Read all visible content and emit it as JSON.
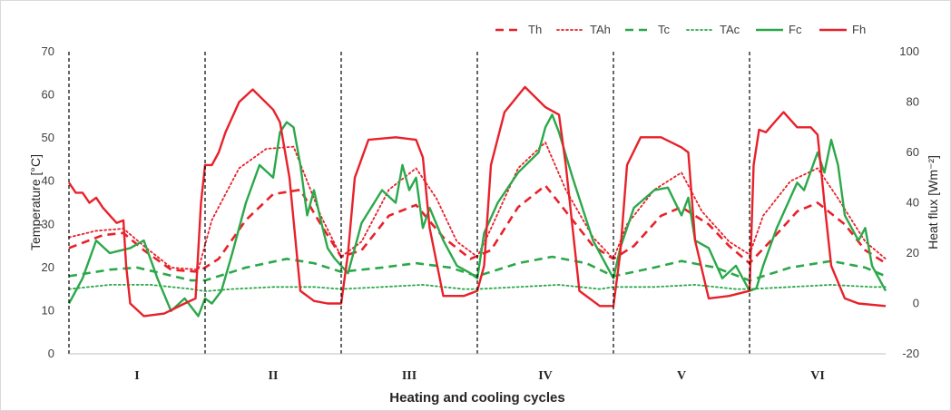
{
  "chart_data": {
    "type": "line",
    "title": "",
    "xlabel": "Heating and cooling  cycles",
    "ylabel": "Temperature [°C]",
    "y2label": "Heat flux [Wm⁻²]",
    "ylim": [
      0,
      70
    ],
    "y2lim": [
      -20,
      100
    ],
    "yticks": [
      "0",
      "10",
      "20",
      "30",
      "40",
      "50",
      "60",
      "70"
    ],
    "y2ticks": [
      "-20",
      "0",
      "20",
      "40",
      "60",
      "80",
      "100"
    ],
    "xlim": [
      0,
      6
    ],
    "cycles": [
      "I",
      "II",
      "III",
      "IV",
      "V",
      "VI"
    ],
    "cycle_boundaries": [
      0,
      1,
      2,
      3,
      4,
      5,
      6
    ],
    "legend_position": "top-right",
    "grid": false,
    "series": [
      {
        "name": "Th",
        "axis": "left",
        "color": "#e8212a",
        "style": "dashed",
        "x": [
          0,
          0.25,
          0.4,
          0.55,
          0.75,
          0.95,
          1.1,
          1.3,
          1.5,
          1.7,
          1.85,
          2.0,
          2.15,
          2.35,
          2.55,
          2.75,
          2.95,
          3.1,
          3.3,
          3.5,
          3.7,
          3.85,
          4.0,
          4.15,
          4.35,
          4.5,
          4.7,
          4.85,
          5.0,
          5.15,
          5.35,
          5.5,
          5.7,
          5.85,
          6.0
        ],
        "y": [
          24.5,
          27.5,
          28,
          24,
          19.5,
          19,
          22,
          31,
          37,
          38,
          30,
          22.5,
          24,
          32,
          34.5,
          27,
          22,
          24,
          34,
          39,
          31,
          25,
          22,
          25,
          32,
          34,
          30,
          25,
          21,
          26,
          33,
          35,
          30,
          24,
          21
        ]
      },
      {
        "name": "TAh",
        "axis": "left",
        "color": "#e8212a",
        "style": "dotted",
        "x": [
          0,
          0.2,
          0.4,
          0.55,
          0.75,
          0.95,
          1.05,
          1.25,
          1.45,
          1.65,
          1.85,
          2.0,
          2.15,
          2.35,
          2.55,
          2.7,
          2.85,
          3.0,
          3.1,
          3.3,
          3.5,
          3.65,
          3.85,
          4.0,
          4.1,
          4.3,
          4.5,
          4.65,
          4.85,
          5.0,
          5.1,
          5.3,
          5.5,
          5.65,
          5.85,
          6.0
        ],
        "y": [
          27,
          28.5,
          29,
          25,
          20,
          19.5,
          31,
          43,
          47.5,
          48,
          32,
          22.5,
          26,
          38,
          43,
          36,
          26,
          22.5,
          29,
          43,
          49,
          38,
          27,
          22,
          30,
          38,
          42,
          33,
          26,
          23,
          32,
          40,
          43,
          36,
          26,
          22
        ]
      },
      {
        "name": "Tc",
        "axis": "left",
        "color": "#2ba84a",
        "style": "dashed",
        "x": [
          0,
          0.3,
          0.5,
          0.7,
          0.9,
          1.0,
          1.3,
          1.6,
          1.8,
          2.0,
          2.3,
          2.55,
          2.8,
          3.0,
          3.3,
          3.55,
          3.8,
          4.0,
          4.3,
          4.5,
          4.75,
          5.0,
          5.3,
          5.6,
          5.85,
          6.0
        ],
        "y": [
          18,
          19.5,
          20,
          18.5,
          17,
          17,
          20,
          22,
          21,
          19,
          20,
          21,
          20,
          18,
          21,
          22.5,
          21,
          18,
          20,
          21.5,
          20,
          17,
          20,
          21.5,
          20,
          18
        ]
      },
      {
        "name": "TAc",
        "axis": "left",
        "color": "#2ba84a",
        "style": "dotted",
        "x": [
          0,
          0.3,
          0.6,
          0.9,
          1.0,
          1.2,
          1.5,
          1.8,
          2.0,
          2.3,
          2.6,
          2.9,
          3.0,
          3.3,
          3.6,
          3.9,
          4.0,
          4.3,
          4.6,
          4.9,
          5.0,
          5.3,
          5.6,
          5.9,
          6.0
        ],
        "y": [
          15,
          16,
          16,
          15,
          14.5,
          15,
          15.5,
          15.5,
          15,
          15.5,
          16,
          15,
          15,
          15.5,
          16,
          15,
          15.5,
          15.5,
          16,
          15,
          15,
          15.5,
          16,
          15.5,
          15.5
        ]
      },
      {
        "name": "Fc",
        "axis": "right",
        "color": "#2ba84a",
        "style": "solid",
        "x": [
          0,
          0.1,
          0.2,
          0.3,
          0.45,
          0.55,
          0.65,
          0.75,
          0.85,
          0.95,
          1.0,
          1.05,
          1.12,
          1.2,
          1.3,
          1.4,
          1.5,
          1.55,
          1.6,
          1.65,
          1.7,
          1.75,
          1.8,
          1.85,
          1.9,
          1.95,
          2.0,
          2.05,
          2.15,
          2.3,
          2.4,
          2.45,
          2.5,
          2.55,
          2.6,
          2.65,
          2.75,
          2.85,
          2.95,
          3.0,
          3.05,
          3.15,
          3.3,
          3.45,
          3.5,
          3.55,
          3.6,
          3.7,
          3.85,
          3.95,
          4.0,
          4.05,
          4.15,
          4.3,
          4.4,
          4.5,
          4.55,
          4.6,
          4.7,
          4.8,
          4.9,
          5.0,
          5.05,
          5.1,
          5.2,
          5.3,
          5.35,
          5.4,
          5.5,
          5.55,
          5.6,
          5.65,
          5.7,
          5.8,
          5.85,
          5.9,
          6.0
        ],
        "y": [
          0,
          10,
          25,
          20,
          22,
          25,
          10,
          -3,
          2,
          -5,
          2,
          0,
          5,
          20,
          40,
          55,
          50,
          68,
          72,
          70,
          55,
          35,
          45,
          33,
          22,
          18,
          15,
          12,
          32,
          45,
          40,
          55,
          45,
          50,
          30,
          38,
          25,
          15,
          12,
          10,
          28,
          40,
          52,
          60,
          70,
          75,
          68,
          50,
          25,
          15,
          10,
          22,
          38,
          45,
          46,
          35,
          42,
          25,
          22,
          10,
          15,
          5,
          6,
          15,
          30,
          42,
          48,
          45,
          60,
          52,
          65,
          55,
          35,
          25,
          30,
          15,
          5
        ]
      },
      {
        "name": "Fh",
        "axis": "right",
        "color": "#e8212a",
        "style": "solid",
        "x": [
          0,
          0.05,
          0.1,
          0.15,
          0.2,
          0.25,
          0.3,
          0.35,
          0.4,
          0.42,
          0.45,
          0.55,
          0.7,
          0.85,
          0.93,
          0.97,
          1.0,
          1.05,
          1.1,
          1.15,
          1.25,
          1.35,
          1.5,
          1.55,
          1.62,
          1.7,
          1.8,
          1.9,
          2.0,
          2.05,
          2.1,
          2.2,
          2.4,
          2.55,
          2.6,
          2.65,
          2.75,
          2.9,
          3.0,
          3.05,
          3.1,
          3.2,
          3.35,
          3.5,
          3.6,
          3.65,
          3.75,
          3.9,
          4.0,
          4.05,
          4.1,
          4.2,
          4.35,
          4.5,
          4.55,
          4.6,
          4.7,
          4.85,
          5.0,
          5.03,
          5.07,
          5.12,
          5.2,
          5.25,
          5.35,
          5.45,
          5.5,
          5.55,
          5.6,
          5.7,
          5.8,
          6.0
        ],
        "y": [
          48,
          44,
          44,
          40,
          42,
          38,
          35,
          32,
          33,
          15,
          0,
          -5,
          -4,
          0,
          2,
          40,
          55,
          55,
          60,
          68,
          80,
          85,
          77,
          72,
          50,
          5,
          1,
          0,
          0,
          20,
          50,
          65,
          66,
          65,
          58,
          30,
          3,
          3,
          5,
          15,
          55,
          76,
          86,
          78,
          75,
          55,
          5,
          -1,
          -1,
          20,
          55,
          66,
          66,
          62,
          60,
          25,
          2,
          3,
          5,
          55,
          69,
          68,
          73,
          76,
          70,
          70,
          67,
          40,
          15,
          2,
          0,
          -1
        ]
      }
    ]
  }
}
